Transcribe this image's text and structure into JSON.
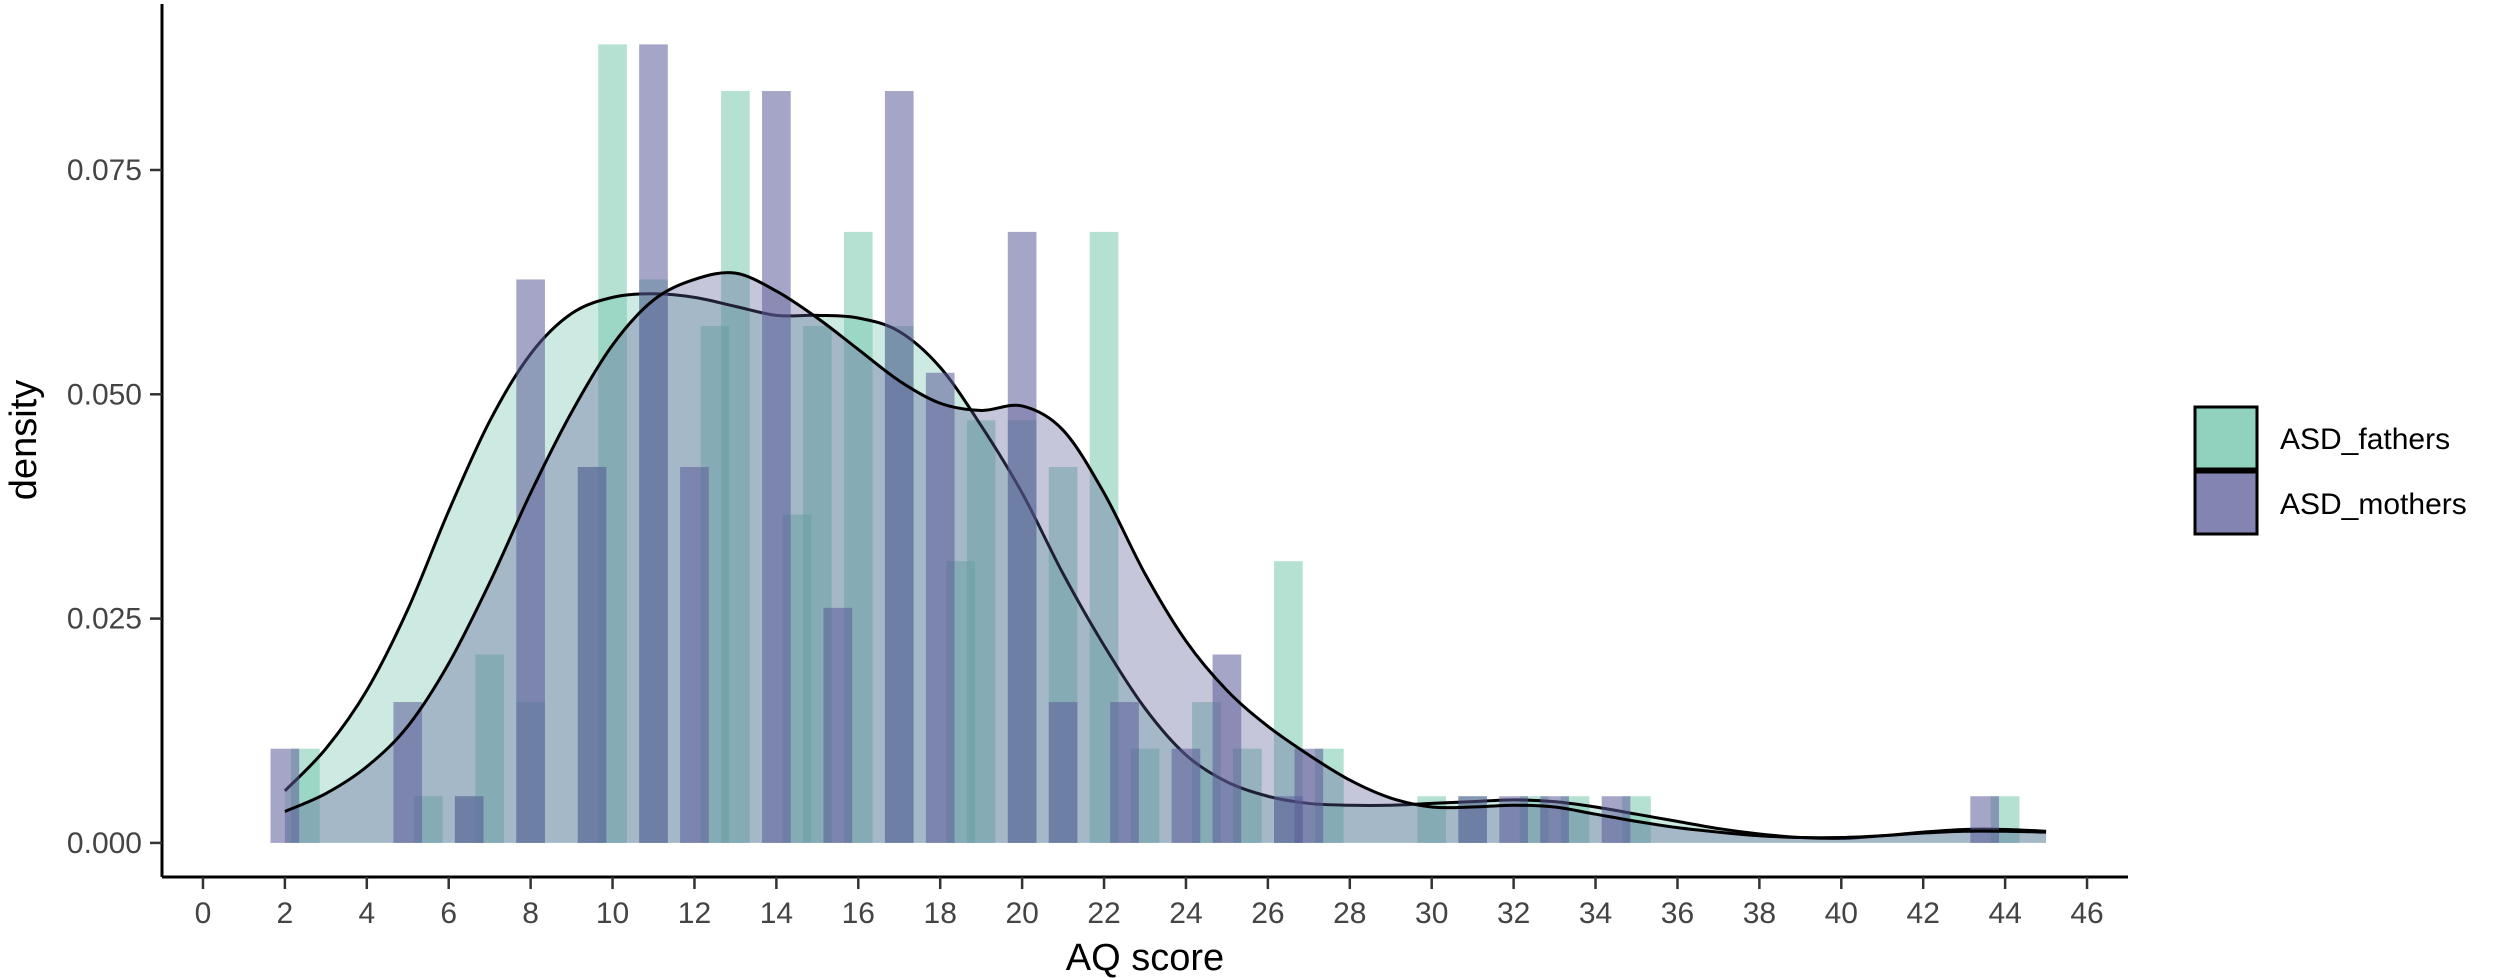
{
  "chart_data": {
    "type": "histogram-density",
    "xlabel": "AQ score",
    "ylabel": "density",
    "xlim": [
      -1,
      47
    ],
    "ylim": [
      -0.0038,
      0.0935
    ],
    "x_ticks": [
      0,
      2,
      4,
      6,
      8,
      10,
      12,
      14,
      16,
      18,
      20,
      22,
      24,
      26,
      28,
      30,
      32,
      34,
      36,
      38,
      40,
      42,
      44,
      46
    ],
    "y_ticks": [
      0.0,
      0.025,
      0.05,
      0.075
    ],
    "y_tick_labels": [
      "0.000",
      "0.025",
      "0.050",
      "0.075"
    ],
    "bin_width": 0.7,
    "legend_position": "right",
    "grid": false,
    "series": [
      {
        "name": "ASD_fathers",
        "color": "#6cc3a8",
        "bar_opacity": 0.5,
        "density_fill_opacity": 0.35,
        "bins": [
          {
            "x": 2.5,
            "density": 0.0105
          },
          {
            "x": 3.0,
            "density": 0.0
          },
          {
            "x": 5.5,
            "density": 0.0052
          },
          {
            "x": 6.5,
            "density": 0.0052
          },
          {
            "x": 7.0,
            "density": 0.021
          },
          {
            "x": 8.0,
            "density": 0.0157
          },
          {
            "x": 9.5,
            "density": 0.0419
          },
          {
            "x": 10.0,
            "density": 0.089
          },
          {
            "x": 11.0,
            "density": 0.0628
          },
          {
            "x": 12.5,
            "density": 0.0576
          },
          {
            "x": 13.0,
            "density": 0.0838
          },
          {
            "x": 14.5,
            "density": 0.0366
          },
          {
            "x": 15.0,
            "density": 0.0576
          },
          {
            "x": 16.0,
            "density": 0.0681
          },
          {
            "x": 17.0,
            "density": 0.0576
          },
          {
            "x": 18.5,
            "density": 0.0314
          },
          {
            "x": 19.0,
            "density": 0.0471
          },
          {
            "x": 20.0,
            "density": 0.0471
          },
          {
            "x": 21.0,
            "density": 0.0419
          },
          {
            "x": 22.0,
            "density": 0.0681
          },
          {
            "x": 23.0,
            "density": 0.0105
          },
          {
            "x": 24.5,
            "density": 0.0157
          },
          {
            "x": 25.5,
            "density": 0.0105
          },
          {
            "x": 26.5,
            "density": 0.0314
          },
          {
            "x": 27.5,
            "density": 0.0105
          },
          {
            "x": 30.0,
            "density": 0.0052
          },
          {
            "x": 31.0,
            "density": 0.0052
          },
          {
            "x": 32.5,
            "density": 0.0052
          },
          {
            "x": 33.5,
            "density": 0.0052
          },
          {
            "x": 35.0,
            "density": 0.0052
          },
          {
            "x": 44.0,
            "density": 0.0052
          }
        ],
        "density_curve": [
          [
            2,
            0.0058
          ],
          [
            3,
            0.0105
          ],
          [
            4,
            0.017
          ],
          [
            5,
            0.026
          ],
          [
            6,
            0.037
          ],
          [
            7,
            0.047
          ],
          [
            8,
            0.0545
          ],
          [
            9,
            0.059
          ],
          [
            10,
            0.0608
          ],
          [
            11,
            0.0612
          ],
          [
            12,
            0.0608
          ],
          [
            13,
            0.0598
          ],
          [
            14,
            0.0588
          ],
          [
            15,
            0.0588
          ],
          [
            16,
            0.0585
          ],
          [
            17,
            0.057
          ],
          [
            18,
            0.053
          ],
          [
            19,
            0.0465
          ],
          [
            20,
            0.039
          ],
          [
            21,
            0.03
          ],
          [
            22,
            0.022
          ],
          [
            23,
            0.015
          ],
          [
            24,
            0.0098
          ],
          [
            25,
            0.0068
          ],
          [
            26,
            0.0052
          ],
          [
            27,
            0.0044
          ],
          [
            28,
            0.0042
          ],
          [
            29,
            0.0042
          ],
          [
            30,
            0.0044
          ],
          [
            31,
            0.0046
          ],
          [
            32,
            0.0048
          ],
          [
            33,
            0.0046
          ],
          [
            34,
            0.004
          ],
          [
            35,
            0.0032
          ],
          [
            36,
            0.0024
          ],
          [
            37,
            0.0016
          ],
          [
            38,
            0.001
          ],
          [
            39,
            0.0006
          ],
          [
            40,
            0.0005
          ],
          [
            41,
            0.0008
          ],
          [
            42,
            0.0012
          ],
          [
            43,
            0.0015
          ],
          [
            44,
            0.0015
          ],
          [
            45,
            0.0013
          ]
        ]
      },
      {
        "name": "ASD_mothers",
        "color": "#5b5b99",
        "bar_opacity": 0.55,
        "density_fill_opacity": 0.35,
        "bins": [
          {
            "x": 2.0,
            "density": 0.0105
          },
          {
            "x": 5.0,
            "density": 0.0157
          },
          {
            "x": 6.5,
            "density": 0.0052
          },
          {
            "x": 8.0,
            "density": 0.0628
          },
          {
            "x": 9.5,
            "density": 0.0419
          },
          {
            "x": 11.0,
            "density": 0.089
          },
          {
            "x": 12.0,
            "density": 0.0419
          },
          {
            "x": 14.0,
            "density": 0.0838
          },
          {
            "x": 15.5,
            "density": 0.0262
          },
          {
            "x": 17.0,
            "density": 0.0838
          },
          {
            "x": 18.0,
            "density": 0.0524
          },
          {
            "x": 20.0,
            "density": 0.0681
          },
          {
            "x": 21.0,
            "density": 0.0157
          },
          {
            "x": 22.5,
            "density": 0.0157
          },
          {
            "x": 24.0,
            "density": 0.0105
          },
          {
            "x": 25.0,
            "density": 0.021
          },
          {
            "x": 26.5,
            "density": 0.0052
          },
          {
            "x": 27.0,
            "density": 0.0105
          },
          {
            "x": 31.0,
            "density": 0.0052
          },
          {
            "x": 32.0,
            "density": 0.0052
          },
          {
            "x": 33.0,
            "density": 0.0052
          },
          {
            "x": 34.5,
            "density": 0.0052
          },
          {
            "x": 43.5,
            "density": 0.0052
          }
        ],
        "density_curve": [
          [
            2,
            0.0035
          ],
          [
            3,
            0.0055
          ],
          [
            4,
            0.0085
          ],
          [
            5,
            0.013
          ],
          [
            6,
            0.02
          ],
          [
            7,
            0.029
          ],
          [
            8,
            0.039
          ],
          [
            9,
            0.048
          ],
          [
            10,
            0.0555
          ],
          [
            11,
            0.0605
          ],
          [
            12,
            0.0628
          ],
          [
            13,
            0.0635
          ],
          [
            14,
            0.0615
          ],
          [
            15,
            0.0585
          ],
          [
            16,
            0.055
          ],
          [
            17,
            0.0515
          ],
          [
            18,
            0.049
          ],
          [
            19,
            0.0482
          ],
          [
            20,
            0.0487
          ],
          [
            21,
            0.046
          ],
          [
            22,
            0.039
          ],
          [
            23,
            0.03
          ],
          [
            24,
            0.0225
          ],
          [
            25,
            0.017
          ],
          [
            26,
            0.013
          ],
          [
            27,
            0.0098
          ],
          [
            28,
            0.007
          ],
          [
            29,
            0.005
          ],
          [
            30,
            0.004
          ],
          [
            31,
            0.004
          ],
          [
            32,
            0.0042
          ],
          [
            33,
            0.004
          ],
          [
            34,
            0.0032
          ],
          [
            35,
            0.0024
          ],
          [
            36,
            0.0017
          ],
          [
            37,
            0.0012
          ],
          [
            38,
            0.0008
          ],
          [
            39,
            0.0006
          ],
          [
            40,
            0.0006
          ],
          [
            41,
            0.0008
          ],
          [
            42,
            0.0011
          ],
          [
            43,
            0.0013
          ],
          [
            44,
            0.0013
          ],
          [
            45,
            0.0012
          ]
        ]
      }
    ]
  }
}
